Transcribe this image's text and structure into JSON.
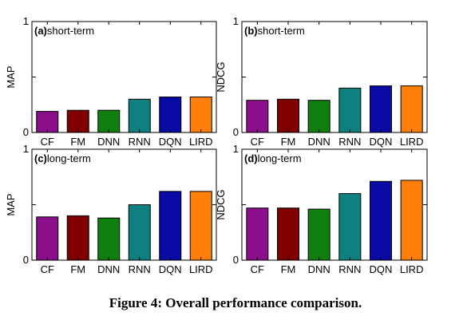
{
  "caption": "Figure 4: Overall performance comparison.",
  "colors": {
    "CF": "#8b0f8b",
    "FM": "#800000",
    "DNN": "#0f7f0f",
    "RNN": "#0f8080",
    "DQN": "#0a0aa5",
    "LIRD": "#ff7f0a"
  },
  "chart_data": [
    {
      "type": "bar",
      "panel_label": "(a)",
      "title": "short-term",
      "ylabel": "MAP",
      "ylim": [
        0,
        1
      ],
      "yticks": [
        "0",
        "",
        "1"
      ],
      "categories": [
        "CF",
        "FM",
        "DNN",
        "RNN",
        "DQN",
        "LIRD"
      ],
      "values": [
        0.19,
        0.2,
        0.2,
        0.3,
        0.32,
        0.32
      ]
    },
    {
      "type": "bar",
      "panel_label": "(b)",
      "title": "short-term",
      "ylabel": "NDCG",
      "ylim": [
        0,
        1
      ],
      "yticks": [
        "0",
        "",
        "1"
      ],
      "categories": [
        "CF",
        "FM",
        "DNN",
        "RNN",
        "DQN",
        "LIRD"
      ],
      "values": [
        0.29,
        0.3,
        0.29,
        0.4,
        0.42,
        0.42
      ]
    },
    {
      "type": "bar",
      "panel_label": "(c)",
      "title": "long-term",
      "ylabel": "MAP",
      "ylim": [
        0,
        1
      ],
      "yticks": [
        "0",
        "",
        "1"
      ],
      "categories": [
        "CF",
        "FM",
        "DNN",
        "RNN",
        "DQN",
        "LIRD"
      ],
      "values": [
        0.39,
        0.4,
        0.38,
        0.5,
        0.62,
        0.62
      ]
    },
    {
      "type": "bar",
      "panel_label": "(d)",
      "title": "long-term",
      "ylabel": "NDCG",
      "ylim": [
        0,
        1
      ],
      "yticks": [
        "0",
        "",
        "1"
      ],
      "categories": [
        "CF",
        "FM",
        "DNN",
        "RNN",
        "DQN",
        "LIRD"
      ],
      "values": [
        0.47,
        0.47,
        0.46,
        0.6,
        0.71,
        0.72
      ]
    }
  ]
}
